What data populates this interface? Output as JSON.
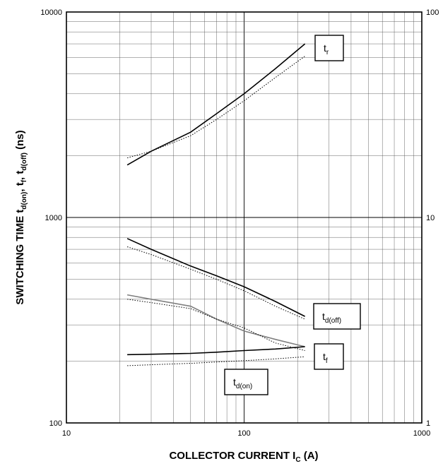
{
  "chart_data": {
    "type": "line",
    "x_scale": "log",
    "y_scale": "log",
    "xlim": [
      10,
      1000
    ],
    "ylim": [
      100,
      10000
    ],
    "y2lim": [
      1,
      100
    ],
    "grid": true,
    "x_ticks": [
      "10",
      "100",
      "1000"
    ],
    "y_ticks": [
      "100",
      "1000",
      "10000"
    ],
    "y2_ticks": [
      "1",
      "10",
      "100"
    ],
    "xlabel": {
      "main": "COLLECTOR CURRENT",
      "symbol": "I",
      "sub": "C",
      "unit": "(A)"
    },
    "ylabel": {
      "main": "SWITCHING TIME",
      "symbol_parts": [
        {
          "t": "t"
        },
        {
          "t": "d(on)",
          "sub": true
        },
        {
          "t": ", t"
        },
        {
          "t": "f",
          "sub": true
        },
        {
          "t": ", t"
        },
        {
          "t": "d(off)",
          "sub": true
        },
        {
          "t": "   (ns)"
        }
      ]
    },
    "series": [
      {
        "name": "tr",
        "label_main": "t",
        "label_sub": "r",
        "style": "solid",
        "color": "#000000",
        "x": [
          22,
          30,
          50,
          70,
          100,
          150,
          220
        ],
        "y": [
          1800,
          2100,
          2600,
          3200,
          4000,
          5300,
          7000
        ]
      },
      {
        "style": "dotted",
        "color": "#000000",
        "x": [
          22,
          30,
          50,
          70,
          100,
          150,
          220
        ],
        "y": [
          1950,
          2100,
          2500,
          3000,
          3700,
          4800,
          6100
        ]
      },
      {
        "name": "td(off)",
        "label_main": "t",
        "label_sub": "d(off)",
        "style": "solid",
        "color": "#000000",
        "x": [
          22,
          30,
          50,
          70,
          100,
          150,
          220
        ],
        "y": [
          790,
          700,
          580,
          520,
          460,
          390,
          330
        ]
      },
      {
        "style": "dotted",
        "color": "#000000",
        "x": [
          22,
          30,
          50,
          70,
          100,
          150,
          220
        ],
        "y": [
          720,
          660,
          560,
          500,
          440,
          370,
          320
        ]
      },
      {
        "name": "tf",
        "label_main": "t",
        "label_sub": "f",
        "style": "solid",
        "color": "#808080",
        "x": [
          22,
          30,
          50,
          70,
          100,
          150,
          220
        ],
        "y": [
          420,
          400,
          370,
          320,
          280,
          255,
          235
        ]
      },
      {
        "style": "dotted",
        "color": "#000000",
        "x": [
          22,
          30,
          50,
          70,
          100,
          150,
          220
        ],
        "y": [
          400,
          385,
          360,
          320,
          290,
          245,
          225
        ]
      },
      {
        "name": "td(on)",
        "label_main": "t",
        "label_sub": "d(on)",
        "style": "solid",
        "color": "#000000",
        "x": [
          22,
          30,
          50,
          70,
          100,
          150,
          220
        ],
        "y": [
          215,
          216,
          218,
          221,
          225,
          229,
          235
        ]
      },
      {
        "style": "dotted",
        "color": "#000000",
        "x": [
          22,
          30,
          50,
          70,
          100,
          150,
          220
        ],
        "y": [
          190,
          192,
          195,
          198,
          201,
          205,
          210
        ]
      }
    ]
  }
}
